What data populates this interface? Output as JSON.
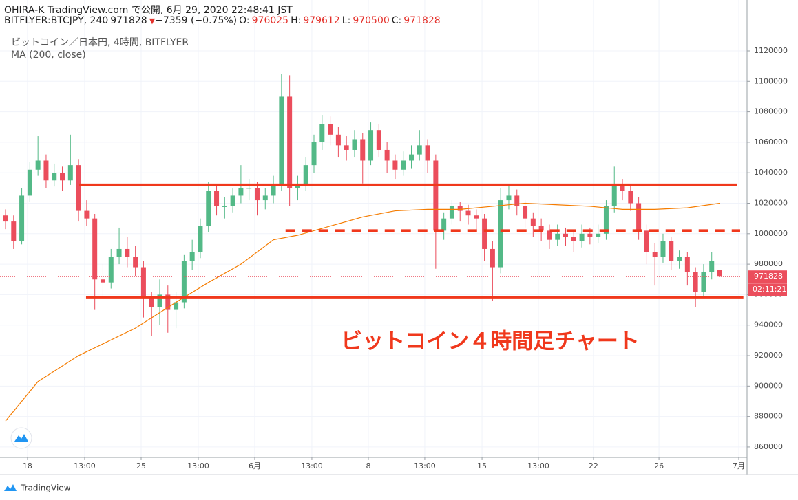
{
  "header": {
    "published": "OHIRA-K TradingView.com で公開, 6月 29, 2020 22:48:41 JST",
    "symbol": "BITFLYER:BTCJPY, 240",
    "arrow": "▼",
    "change": "−7359 (−0.75%)",
    "ohlc_labels": [
      "O:",
      "H:",
      "L:",
      "C:"
    ]
  },
  "chart_data": {
    "type": "candlestick",
    "legend": "ビットコイン／日本円, 4時間, BITFLYER",
    "annotation": "ビットコイン４時間足チャート",
    "countdown": "02:11:21",
    "footer": "TradingView",
    "up_color": "#53b987",
    "down_color": "#eb4d5c",
    "grid": true,
    "xlim": [
      0,
      91.35
    ],
    "ylim": [
      853200,
      1153400
    ],
    "yticks": [
      860000,
      880000,
      900000,
      920000,
      940000,
      960000,
      980000,
      1000000,
      1020000,
      1040000,
      1060000,
      1080000,
      1100000,
      1120000
    ],
    "xticks": [
      {
        "value": 2.71,
        "label": "18"
      },
      {
        "value": 9.75,
        "label": "13:00"
      },
      {
        "value": 16.71,
        "label": "25"
      },
      {
        "value": 23.75,
        "label": "13:00"
      },
      {
        "value": 30.7,
        "label": "6月"
      },
      {
        "value": 37.74,
        "label": "13:00"
      },
      {
        "value": 44.7,
        "label": "8"
      },
      {
        "value": 51.65,
        "label": "13:00"
      },
      {
        "value": 58.7,
        "label": "15"
      },
      {
        "value": 65.65,
        "label": "13:00"
      },
      {
        "value": 72.43,
        "label": "22"
      },
      {
        "value": 80.5,
        "label": "26"
      },
      {
        "value": 90.33,
        "label": "7月"
      }
    ],
    "candles": [
      [
        1012000,
        1016000,
        1003000,
        1008000
      ],
      [
        1008000,
        1012000,
        990000,
        995000
      ],
      [
        995000,
        1030000,
        993000,
        1025000
      ],
      [
        1025000,
        1047000,
        1021000,
        1042000
      ],
      [
        1042000,
        1064000,
        1038000,
        1048000
      ],
      [
        1048000,
        1052000,
        1030000,
        1035000
      ],
      [
        1035000,
        1046000,
        1031000,
        1040000
      ],
      [
        1040000,
        1044000,
        1028000,
        1035000
      ],
      [
        1035000,
        1065000,
        1032000,
        1045000
      ],
      [
        1045000,
        1049000,
        1008000,
        1015000
      ],
      [
        1015000,
        1022000,
        1005000,
        1010000
      ],
      [
        1010000,
        1013000,
        950000,
        970000
      ],
      [
        970000,
        980000,
        958000,
        968000
      ],
      [
        968000,
        990000,
        964000,
        985000
      ],
      [
        985000,
        1004000,
        980000,
        990000
      ],
      [
        990000,
        998000,
        978000,
        985000
      ],
      [
        985000,
        992000,
        972000,
        978000
      ],
      [
        978000,
        982000,
        945000,
        958000
      ],
      [
        958000,
        962000,
        933000,
        952000
      ],
      [
        952000,
        970000,
        940000,
        960000
      ],
      [
        960000,
        966000,
        935000,
        950000
      ],
      [
        950000,
        962000,
        938000,
        955000
      ],
      [
        955000,
        986000,
        951000,
        982000
      ],
      [
        982000,
        996000,
        976000,
        988000
      ],
      [
        988000,
        1010000,
        984000,
        1005000
      ],
      [
        1005000,
        1034000,
        1001000,
        1028000
      ],
      [
        1028000,
        1032000,
        1012000,
        1018000
      ],
      [
        1018000,
        1024000,
        1010000,
        1018000
      ],
      [
        1018000,
        1030000,
        1014000,
        1025000
      ],
      [
        1025000,
        1045000,
        1020000,
        1030000
      ],
      [
        1030000,
        1036000,
        1022000,
        1030000
      ],
      [
        1030000,
        1034000,
        1012000,
        1022000
      ],
      [
        1022000,
        1030000,
        1016000,
        1025000
      ],
      [
        1025000,
        1038000,
        1020000,
        1032000
      ],
      [
        1032000,
        1105000,
        1028000,
        1090000
      ],
      [
        1090000,
        1104000,
        1018000,
        1030000
      ],
      [
        1030000,
        1038000,
        1022000,
        1032000
      ],
      [
        1032000,
        1050000,
        1028000,
        1045000
      ],
      [
        1045000,
        1065000,
        1040000,
        1060000
      ],
      [
        1060000,
        1078000,
        1055000,
        1072000
      ],
      [
        1072000,
        1077000,
        1058000,
        1065000
      ],
      [
        1065000,
        1070000,
        1050000,
        1058000
      ],
      [
        1058000,
        1064000,
        1048000,
        1055000
      ],
      [
        1055000,
        1068000,
        1050000,
        1062000
      ],
      [
        1062000,
        1066000,
        1033000,
        1048000
      ],
      [
        1048000,
        1073000,
        1045000,
        1068000
      ],
      [
        1068000,
        1072000,
        1050000,
        1055000
      ],
      [
        1055000,
        1060000,
        1040000,
        1048000
      ],
      [
        1048000,
        1052000,
        1036000,
        1042000
      ],
      [
        1042000,
        1054000,
        1038000,
        1048000
      ],
      [
        1048000,
        1058000,
        1043000,
        1052000
      ],
      [
        1052000,
        1068000,
        1048000,
        1058000
      ],
      [
        1058000,
        1062000,
        1040000,
        1048000
      ],
      [
        1048000,
        1052000,
        977000,
        1002000
      ],
      [
        1002000,
        1014000,
        996000,
        1010000
      ],
      [
        1010000,
        1022000,
        1006000,
        1018000
      ],
      [
        1018000,
        1021000,
        1008000,
        1015000
      ],
      [
        1015000,
        1019000,
        1006000,
        1012000
      ],
      [
        1012000,
        1016000,
        1002000,
        1010000
      ],
      [
        1010000,
        1013000,
        982000,
        990000
      ],
      [
        990000,
        995000,
        956000,
        978000
      ],
      [
        978000,
        1030000,
        974000,
        1022000
      ],
      [
        1022000,
        1032000,
        1016000,
        1025000
      ],
      [
        1025000,
        1029000,
        1012000,
        1018000
      ],
      [
        1018000,
        1022000,
        1004000,
        1010000
      ],
      [
        1010000,
        1014000,
        998000,
        1005000
      ],
      [
        1005000,
        1010000,
        995000,
        1002000
      ],
      [
        1002000,
        1006000,
        990000,
        996000
      ],
      [
        996000,
        1006000,
        992000,
        1000000
      ],
      [
        1000000,
        1004000,
        992000,
        998000
      ],
      [
        998000,
        1002000,
        988000,
        995000
      ],
      [
        995000,
        1006000,
        991000,
        1000000
      ],
      [
        1000000,
        1004000,
        993000,
        998000
      ],
      [
        998000,
        1006000,
        994000,
        1000000
      ],
      [
        1000000,
        1022000,
        996000,
        1018000
      ],
      [
        1018000,
        1044000,
        1014000,
        1032000
      ],
      [
        1032000,
        1036000,
        1022000,
        1028000
      ],
      [
        1028000,
        1032000,
        1015000,
        1020000
      ],
      [
        1020000,
        1024000,
        996000,
        1002000
      ],
      [
        1002000,
        1006000,
        980000,
        988000
      ],
      [
        988000,
        994000,
        966000,
        985000
      ],
      [
        985000,
        1000000,
        981000,
        995000
      ],
      [
        995000,
        998000,
        976000,
        982000
      ],
      [
        982000,
        989000,
        977000,
        985000
      ],
      [
        985000,
        988000,
        966000,
        975000
      ],
      [
        975000,
        978000,
        952000,
        962000
      ],
      [
        962000,
        980000,
        958000,
        975000
      ],
      [
        975000,
        988000,
        970000,
        982000
      ],
      [
        976025,
        979612,
        970500,
        971828
      ]
    ],
    "ma": {
      "name": "MA (200, close)",
      "color": "#f57c00",
      "x": [
        0,
        4,
        9,
        16,
        21,
        25,
        29,
        33,
        36,
        40,
        44,
        48,
        52,
        56,
        60,
        64,
        68,
        72,
        76,
        80,
        84,
        88
      ],
      "values": [
        877000,
        903000,
        920000,
        938000,
        955000,
        968000,
        980000,
        996000,
        999000,
        1005000,
        1011000,
        1015000,
        1016000,
        1016000,
        1018000,
        1020000,
        1019000,
        1018000,
        1016000,
        1016000,
        1017000,
        1020000
      ]
    },
    "hlines": [
      {
        "value": 1032000,
        "xrange": [
          9.08,
          90.08
        ],
        "style": "solid"
      },
      {
        "value": 1002000,
        "xrange": [
          34.5,
          90.5
        ],
        "style": "dashed"
      },
      {
        "value": 958000,
        "xrange": [
          9.92,
          90.9
        ],
        "style": "solid"
      }
    ],
    "hline_color": "#f0381c"
  }
}
